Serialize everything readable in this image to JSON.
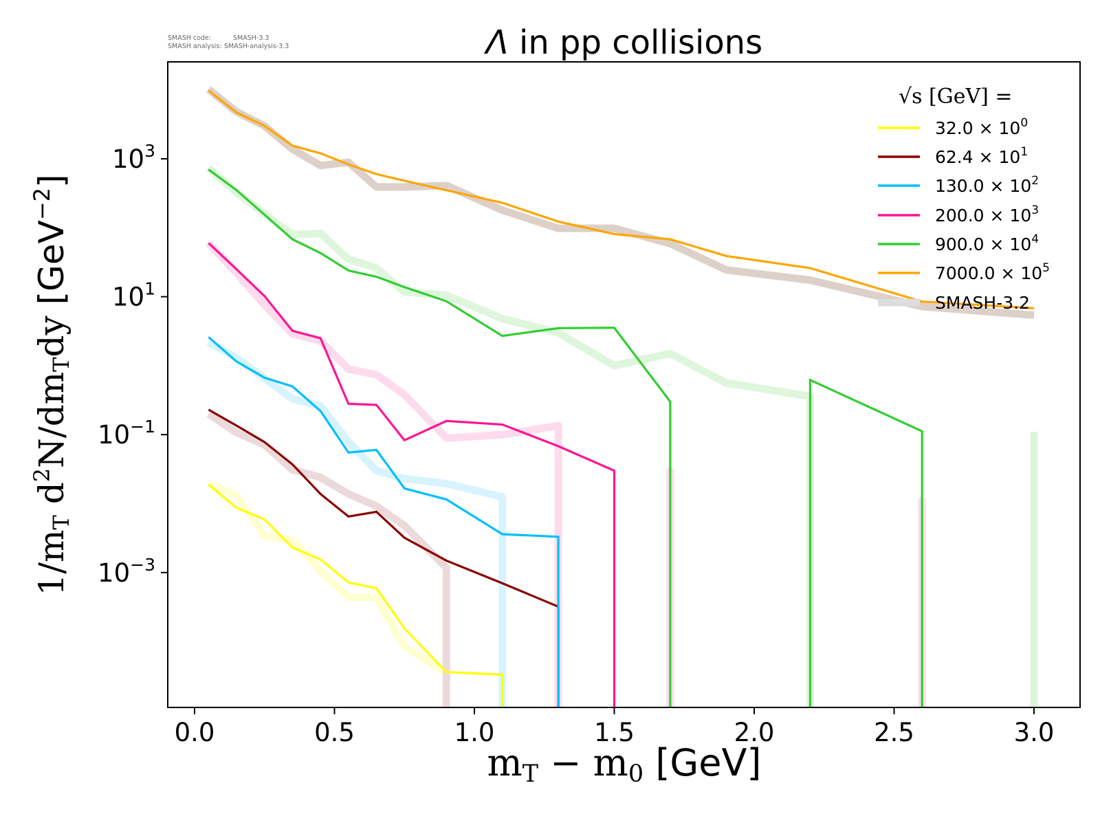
{
  "meta_text": {
    "code_label": "SMASH code:",
    "code_value": "SMASH-3.3",
    "analysis_label": "SMASH analysis:",
    "analysis_value": "SMASH-analysis-3.3"
  },
  "chart_data": {
    "type": "line",
    "title_symbol": "Λ",
    "title_rest": " in pp collisions",
    "xlabel": "m_T − m_0 [GeV]",
    "ylabel": "1/m_T d^2N/dm_Tdy [GeV^-2]",
    "x_scale": "linear",
    "y_scale": "log",
    "xlim": [
      -0.1,
      3.15
    ],
    "ylim": [
      1.1e-05,
      26000
    ],
    "grid": false,
    "legend_position": "top-right",
    "legend_title": "√s [GeV] =",
    "reference_label": "SMASH-3.2",
    "reference_color": "#dddddd",
    "x_ticks": [
      {
        "value": 0.0,
        "label": "0.0"
      },
      {
        "value": 0.5,
        "label": "0.5"
      },
      {
        "value": 1.0,
        "label": "1.0"
      },
      {
        "value": 1.5,
        "label": "1.5"
      },
      {
        "value": 2.0,
        "label": "2.0"
      },
      {
        "value": 2.5,
        "label": "2.5"
      },
      {
        "value": 3.0,
        "label": "3.0"
      }
    ],
    "y_ticks": [
      {
        "value": 1000,
        "base": "10",
        "exp": "3"
      },
      {
        "value": 10,
        "base": "10",
        "exp": "1"
      },
      {
        "value": 0.1,
        "base": "10",
        "exp": "−1"
      },
      {
        "value": 0.001,
        "base": "10",
        "exp": "−3"
      }
    ],
    "x": [
      0.05,
      0.15,
      0.25,
      0.35,
      0.45,
      0.55,
      0.65,
      0.75,
      0.9,
      1.1,
      1.3,
      1.5,
      1.7,
      1.9,
      2.2,
      2.6,
      3.0
    ],
    "series": [
      {
        "name": "32.0 × 10^0",
        "label_base": "32.0 × 10",
        "label_exp": "0",
        "color": "#ffff00",
        "band_color": "#ffffd2",
        "values": [
          0.019,
          0.0087,
          0.0059,
          0.0023,
          0.00155,
          0.00072,
          0.00059,
          0.000155,
          3.6e-05,
          3.3e-05,
          0,
          0,
          0,
          0,
          0,
          0,
          0
        ],
        "smash_3_2_values": [
          0.019,
          0.0132,
          0.0034,
          0.003,
          0.00105,
          0.00044,
          0.00043,
          8.5e-05,
          3.5e-05,
          0,
          0,
          0,
          0,
          0,
          0,
          0,
          0
        ]
      },
      {
        "name": "62.4 × 10^1",
        "label_base": "62.4 × 10",
        "label_exp": "1",
        "color": "#8b0000",
        "band_color": "#ecdada",
        "values": [
          0.23,
          0.135,
          0.078,
          0.037,
          0.0138,
          0.0065,
          0.0076,
          0.0032,
          0.00149,
          0.0007,
          0.00032,
          0,
          0,
          0,
          0,
          0,
          0
        ],
        "smash_3_2_values": [
          0.2,
          0.107,
          0.071,
          0.031,
          0.024,
          0.0138,
          0.0092,
          0.0048,
          0.00117,
          0,
          0,
          0,
          0,
          0,
          0,
          0,
          0.0001
        ]
      },
      {
        "name": "130.0 × 10^2",
        "label_base": "130.0 × 10",
        "label_exp": "2",
        "color": "#00bfff",
        "band_color": "#d7f3fe",
        "values": [
          2.6,
          1.15,
          0.67,
          0.5,
          0.22,
          0.055,
          0.06,
          0.0166,
          0.0115,
          0.0036,
          0.0033,
          0,
          0,
          0,
          0,
          0,
          0
        ],
        "smash_3_2_values": [
          2.2,
          1.3,
          0.66,
          0.33,
          0.26,
          0.079,
          0.03,
          0.023,
          0.0195,
          0.0125,
          0,
          0,
          0,
          0,
          0,
          0,
          0
        ]
      },
      {
        "name": "200.0 × 10^3",
        "label_base": "200.0 × 10",
        "label_exp": "3",
        "color": "#ff1493",
        "band_color": "#fddbec",
        "values": [
          60,
          25,
          10.2,
          3.2,
          2.5,
          0.28,
          0.27,
          0.083,
          0.158,
          0.14,
          0.068,
          0.03,
          0,
          0,
          0,
          0,
          0
        ],
        "smash_3_2_values": [
          60,
          22,
          7.6,
          2.9,
          2.3,
          0.89,
          0.74,
          0.38,
          0.089,
          0.1,
          0.135,
          0,
          0.03,
          0,
          0,
          0.011,
          0
        ]
      },
      {
        "name": "900.0 × 10^4",
        "label_base": "900.0 × 10",
        "label_exp": "4",
        "color": "#32cd32",
        "band_color": "#def6dc",
        "values": [
          700,
          350,
          155,
          68,
          43,
          24,
          19.5,
          13.8,
          8.6,
          2.7,
          3.5,
          3.55,
          0.3,
          0,
          0.62,
          0.112,
          0
        ],
        "smash_3_2_values": [
          740,
          325,
          160,
          79,
          83,
          35,
          26,
          11.7,
          10.5,
          4.8,
          3.0,
          1.0,
          1.5,
          0.56,
          0.36,
          0,
          0.11
        ]
      },
      {
        "name": "7000.0 × 10^5",
        "label_base": "7000.0 × 10",
        "label_exp": "5",
        "color": "#ffa500",
        "band_color": "#ddd0c9",
        "values": [
          9800,
          4700,
          3000,
          1550,
          1200,
          830,
          600,
          480,
          350,
          230,
          123,
          81,
          68,
          39,
          26,
          8.5,
          6.8
        ],
        "smash_3_2_values": [
          10200,
          4800,
          3000,
          1380,
          800,
          890,
          390,
          390,
          410,
          180,
          98,
          98,
          59,
          24.5,
          17.4,
          7.2,
          5.4
        ]
      }
    ]
  }
}
